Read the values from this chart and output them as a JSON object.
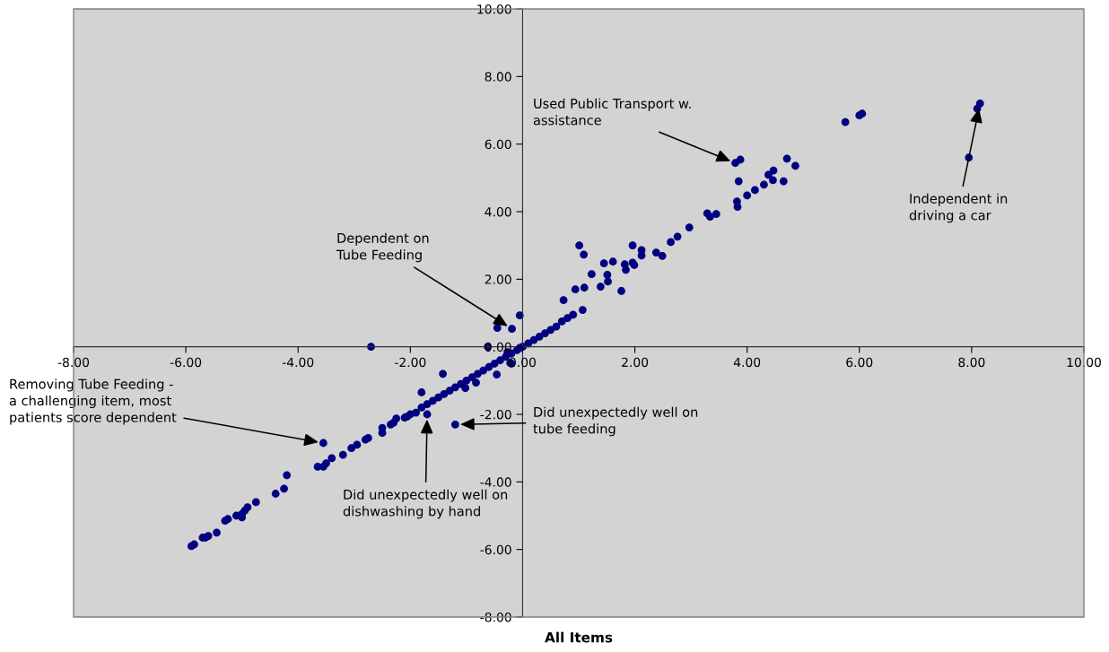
{
  "chart_data": {
    "type": "scatter",
    "xlabel": "All Items",
    "marker": "circle",
    "grid": false,
    "xlim": [
      -8,
      10
    ],
    "ylim": [
      -8,
      10
    ],
    "xticks": [
      {
        "value": -8,
        "label": "-8.00"
      },
      {
        "value": -6,
        "label": "-6.00"
      },
      {
        "value": -4,
        "label": "-4.00"
      },
      {
        "value": -2,
        "label": "-2.00"
      },
      {
        "value": 0,
        "label": "0.00"
      },
      {
        "value": 2,
        "label": "2.00"
      },
      {
        "value": 4,
        "label": "4.00"
      },
      {
        "value": 6,
        "label": "6.00"
      },
      {
        "value": 8,
        "label": "8.00"
      },
      {
        "value": 10,
        "label": "10.00"
      }
    ],
    "yticks": [
      {
        "value": -8,
        "label": "-8.00"
      },
      {
        "value": -6,
        "label": "-6.00"
      },
      {
        "value": -4,
        "label": "-4.00"
      },
      {
        "value": -2,
        "label": "-2.00"
      },
      {
        "value": 0,
        "label": "0.00"
      },
      {
        "value": 2,
        "label": "2.00"
      },
      {
        "value": 4,
        "label": "4.00"
      },
      {
        "value": 6,
        "label": "6.00"
      },
      {
        "value": 8,
        "label": "8.00"
      },
      {
        "value": 10,
        "label": "10.00"
      }
    ],
    "series": [
      {
        "color": "#000080",
        "x": [
          -5.9,
          -5.85,
          -5.7,
          -5.65,
          -5.6,
          -5.45,
          -5.3,
          -5.25,
          -5.1,
          -5.0,
          -5.0,
          -4.95,
          -4.9,
          -4.75,
          -4.4,
          -4.25,
          -4.2,
          -3.65,
          -3.55,
          -3.5,
          -3.4,
          -3.55,
          -3.2,
          -3.05,
          -2.95,
          -2.8,
          -2.75,
          -2.5,
          -2.5,
          -2.35,
          -2.3,
          -2.25,
          -2.1,
          -2.06,
          -2.0,
          -1.9,
          -1.8,
          -1.7,
          -1.6,
          -1.5,
          -1.4,
          -1.3,
          -1.2,
          -1.1,
          -1.0,
          -0.9,
          -0.8,
          -0.7,
          -0.6,
          -0.5,
          -0.4,
          -0.3,
          -0.2,
          -0.1,
          0.0,
          0.1,
          0.2,
          0.3,
          0.4,
          0.5,
          0.6,
          0.7,
          0.8,
          0.9,
          -2.7,
          -1.7,
          -1.2,
          -1.8,
          -1.42,
          -1.02,
          -0.83,
          -0.46,
          -0.22,
          -0.05,
          -0.45,
          -0.19,
          -0.05,
          -0.2,
          -0.62,
          -0.27,
          3.79,
          3.88,
          3.85,
          3.82,
          3.83,
          4.0,
          4.14,
          4.3,
          4.38,
          4.47,
          4.46,
          4.65,
          4.71,
          4.86,
          2.97,
          2.76,
          2.64,
          3.29,
          3.34,
          3.45,
          2.38,
          2.49,
          2.12,
          2.12,
          1.96,
          1.96,
          1.99,
          1.82,
          1.84,
          1.61,
          1.45,
          1.51,
          1.52,
          1.23,
          1.76,
          1.39,
          1.1,
          0.94,
          1.01,
          1.09,
          1.07,
          0.73,
          6.05,
          6.0,
          5.75,
          7.95,
          8.1,
          8.15
        ],
        "values": [
          -5.9,
          -5.85,
          -5.65,
          -5.65,
          -5.6,
          -5.5,
          -5.15,
          -5.1,
          -5.0,
          -5.05,
          -4.95,
          -4.85,
          -4.75,
          -4.6,
          -4.35,
          -4.2,
          -3.8,
          -3.55,
          -3.55,
          -3.45,
          -3.3,
          -2.85,
          -3.2,
          -3.0,
          -2.9,
          -2.75,
          -2.7,
          -2.55,
          -2.4,
          -2.3,
          -2.25,
          -2.12,
          -2.1,
          -2.07,
          -2.0,
          -1.95,
          -1.8,
          -1.7,
          -1.6,
          -1.5,
          -1.4,
          -1.3,
          -1.2,
          -1.1,
          -1.0,
          -0.9,
          -0.8,
          -0.7,
          -0.6,
          -0.5,
          -0.4,
          -0.3,
          -0.2,
          -0.1,
          0.0,
          0.1,
          0.2,
          0.3,
          0.4,
          0.5,
          0.6,
          0.75,
          0.85,
          0.95,
          0.0,
          -2.0,
          -2.3,
          -1.35,
          -0.8,
          -1.22,
          -1.06,
          -0.82,
          -0.48,
          0.93,
          0.56,
          0.53,
          -0.03,
          -0.5,
          0.0,
          -0.16,
          5.44,
          5.54,
          4.9,
          4.3,
          4.14,
          4.48,
          4.64,
          4.8,
          5.09,
          5.22,
          4.93,
          4.9,
          5.57,
          5.36,
          3.53,
          3.26,
          3.1,
          3.95,
          3.85,
          3.93,
          2.79,
          2.69,
          2.86,
          2.7,
          3.0,
          2.49,
          2.42,
          2.44,
          2.28,
          2.52,
          2.47,
          2.13,
          1.93,
          2.15,
          1.65,
          1.78,
          1.75,
          1.7,
          3.0,
          2.73,
          1.09,
          1.38,
          6.9,
          6.85,
          6.65,
          5.6,
          7.05,
          7.2
        ]
      }
    ],
    "annotations": [
      {
        "text": "Used Public Transport w.\nassistance",
        "x": 3.79,
        "y": 5.44
      },
      {
        "text": "Independent in\ndriving a car",
        "x": 8.15,
        "y": 7.2
      },
      {
        "text": "Dependent on\nTube Feeding",
        "x": -0.19,
        "y": 0.53
      },
      {
        "text": "Removing Tube Feeding -\na challenging item, most\npatients score dependent",
        "x": -3.55,
        "y": -2.85
      },
      {
        "text": "Did unexpectedly well on\ntube feeding",
        "x": -1.2,
        "y": -2.3
      },
      {
        "text": "Did unexpectedly well on\ndishwashing by hand",
        "x": -1.7,
        "y": -2.0
      }
    ]
  }
}
